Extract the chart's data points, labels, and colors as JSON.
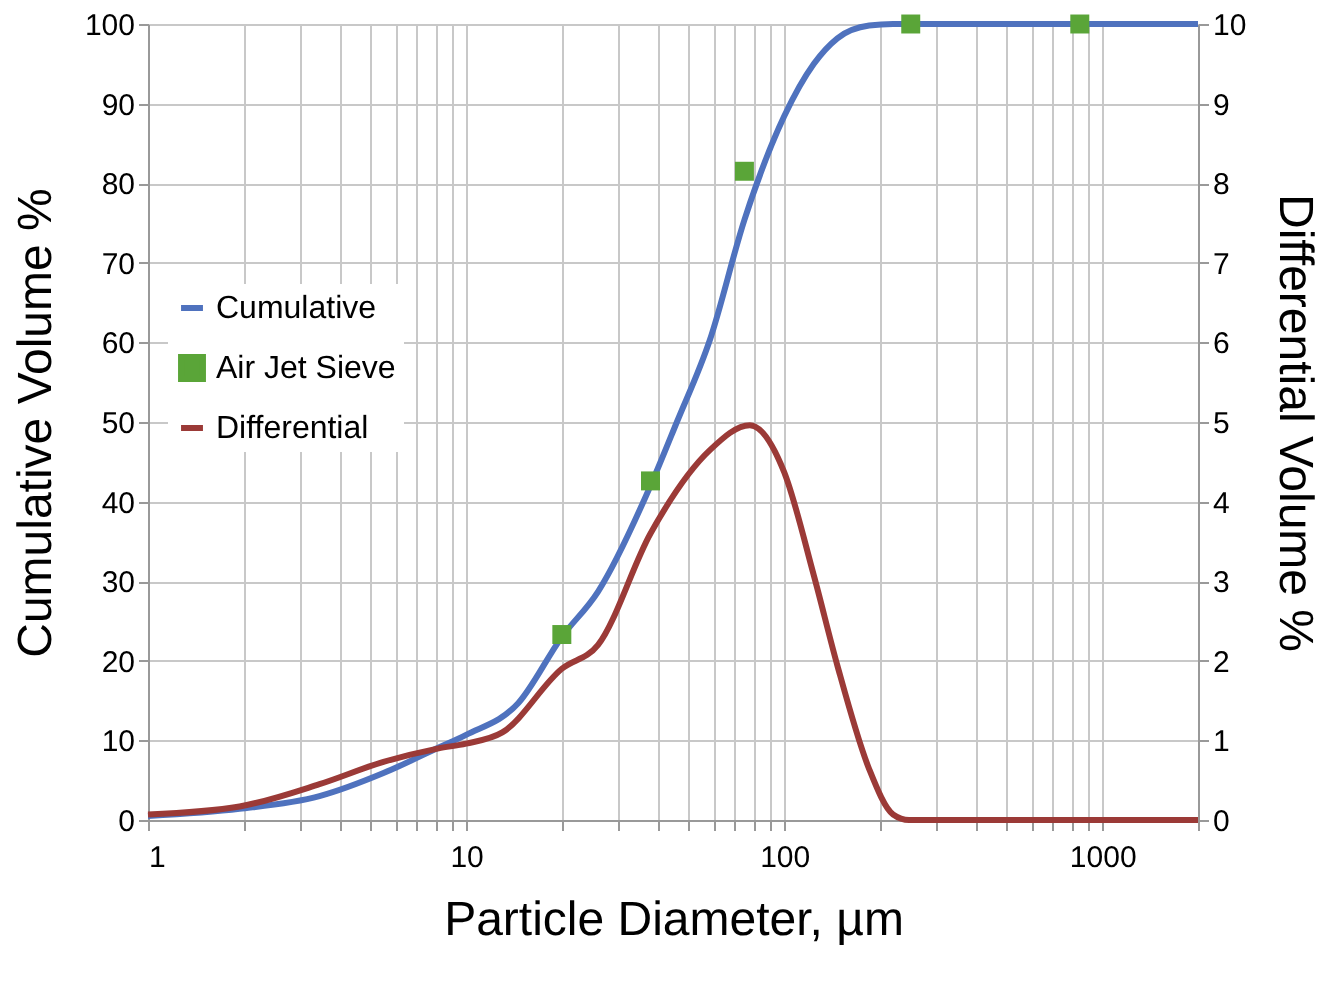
{
  "chart_data": {
    "type": "line",
    "xlabel": "Particle Diameter, µm",
    "ylabel": "Cumulative Volume %",
    "y2label": "Differential Volume %",
    "log": "x",
    "grid": true,
    "legend": "left",
    "line_style": "solid",
    "xlim": [
      1,
      2000
    ],
    "xticks": [
      1,
      {
        "value": 2,
        "label": null
      },
      {
        "value": 3,
        "label": null
      },
      {
        "value": 4,
        "label": null
      },
      {
        "value": 5,
        "label": null
      },
      {
        "value": 6,
        "label": null
      },
      {
        "value": 7,
        "label": null
      },
      {
        "value": 8,
        "label": null
      },
      {
        "value": 9,
        "label": null
      },
      10,
      {
        "value": 20,
        "label": null
      },
      {
        "value": 30,
        "label": null
      },
      {
        "value": 40,
        "label": null
      },
      {
        "value": 50,
        "label": null
      },
      {
        "value": 60,
        "label": null
      },
      {
        "value": 70,
        "label": null
      },
      {
        "value": 80,
        "label": null
      },
      {
        "value": 90,
        "label": null
      },
      100,
      {
        "value": 200,
        "label": null
      },
      {
        "value": 300,
        "label": null
      },
      {
        "value": 400,
        "label": null
      },
      {
        "value": 500,
        "label": null
      },
      {
        "value": 600,
        "label": null
      },
      {
        "value": 700,
        "label": null
      },
      {
        "value": 800,
        "label": null
      },
      {
        "value": 900,
        "label": null
      },
      1000,
      {
        "value": 2000,
        "label": null
      }
    ],
    "ylim": [
      0,
      100
    ],
    "yticks": [
      0,
      10,
      20,
      30,
      40,
      50,
      60,
      70,
      80,
      90,
      100
    ],
    "y2lim": [
      0,
      10
    ],
    "y2ticks": [
      0,
      1,
      2,
      3,
      4,
      5,
      6,
      7,
      8,
      9,
      10
    ],
    "series": [
      {
        "name": "Cumulative",
        "color": "#4f72be",
        "x": [
          1,
          1.94,
          3.46,
          5.5,
          8.2,
          10,
          14.6,
          20,
          26,
          38,
          46,
          58.5,
          75,
          100,
          124,
          147,
          185,
          220,
          2000
        ],
        "values": [
          0.5,
          1.4,
          3,
          5.9,
          9.1,
          10.7,
          14.7,
          23,
          28.7,
          42,
          50,
          60.4,
          75.4,
          88.4,
          95,
          98.2,
          99.8,
          100,
          100
        ]
      },
      {
        "name": "Air Jet Sieve",
        "color": "#5aa538",
        "type": "scatter",
        "marker": "square",
        "x": [
          20,
          38,
          75,
          250,
          850
        ],
        "values": [
          23.3,
          42.6,
          81.5,
          100,
          100
        ]
      },
      {
        "name": "Differential",
        "color": "#9b3a37",
        "axis": "y2",
        "x": [
          1,
          1.94,
          3.46,
          5.5,
          8.2,
          10,
          13,
          20,
          26,
          38,
          58.5,
          78,
          100,
          124,
          147,
          185,
          220,
          247,
          2000
        ],
        "values": [
          0.07,
          0.17,
          0.45,
          0.73,
          0.9,
          0.96,
          1.1,
          1.9,
          2.2,
          3.6,
          4.65,
          4.96,
          4.37,
          3.07,
          1.94,
          0.64,
          0.07,
          0,
          0
        ]
      }
    ]
  }
}
